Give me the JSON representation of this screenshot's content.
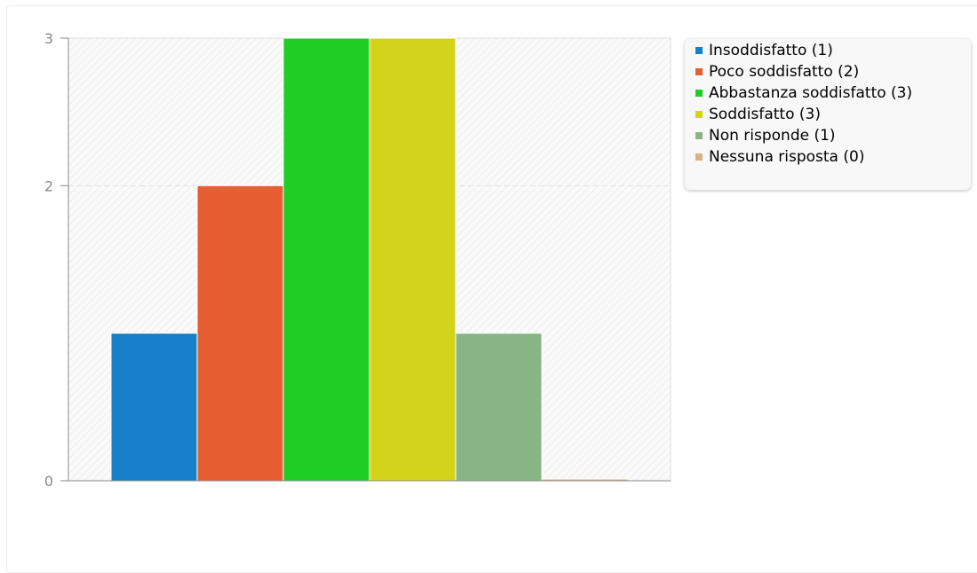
{
  "chart_data": {
    "type": "bar",
    "categories": [
      "Insoddisfatto (1)",
      "Poco soddisfatto (2)",
      "Abbastanza soddisfatto (3)",
      "Soddisfatto (3)",
      "Non risponde (1)",
      "Nessuna risposta (0)"
    ],
    "values": [
      1,
      2,
      3,
      3,
      1,
      0
    ],
    "colors": [
      "#1580c9",
      "#e85e33",
      "#1fce22",
      "#d3d31c",
      "#89b584",
      "#d6b386"
    ],
    "yticks": [
      {
        "value": 0,
        "label": "0"
      },
      {
        "value": 2,
        "label": "2"
      },
      {
        "value": 3,
        "label": "3"
      }
    ],
    "ylim": [
      0,
      3
    ],
    "title": "",
    "xlabel": "",
    "ylabel": "",
    "grid": true,
    "legend_position": "right"
  }
}
